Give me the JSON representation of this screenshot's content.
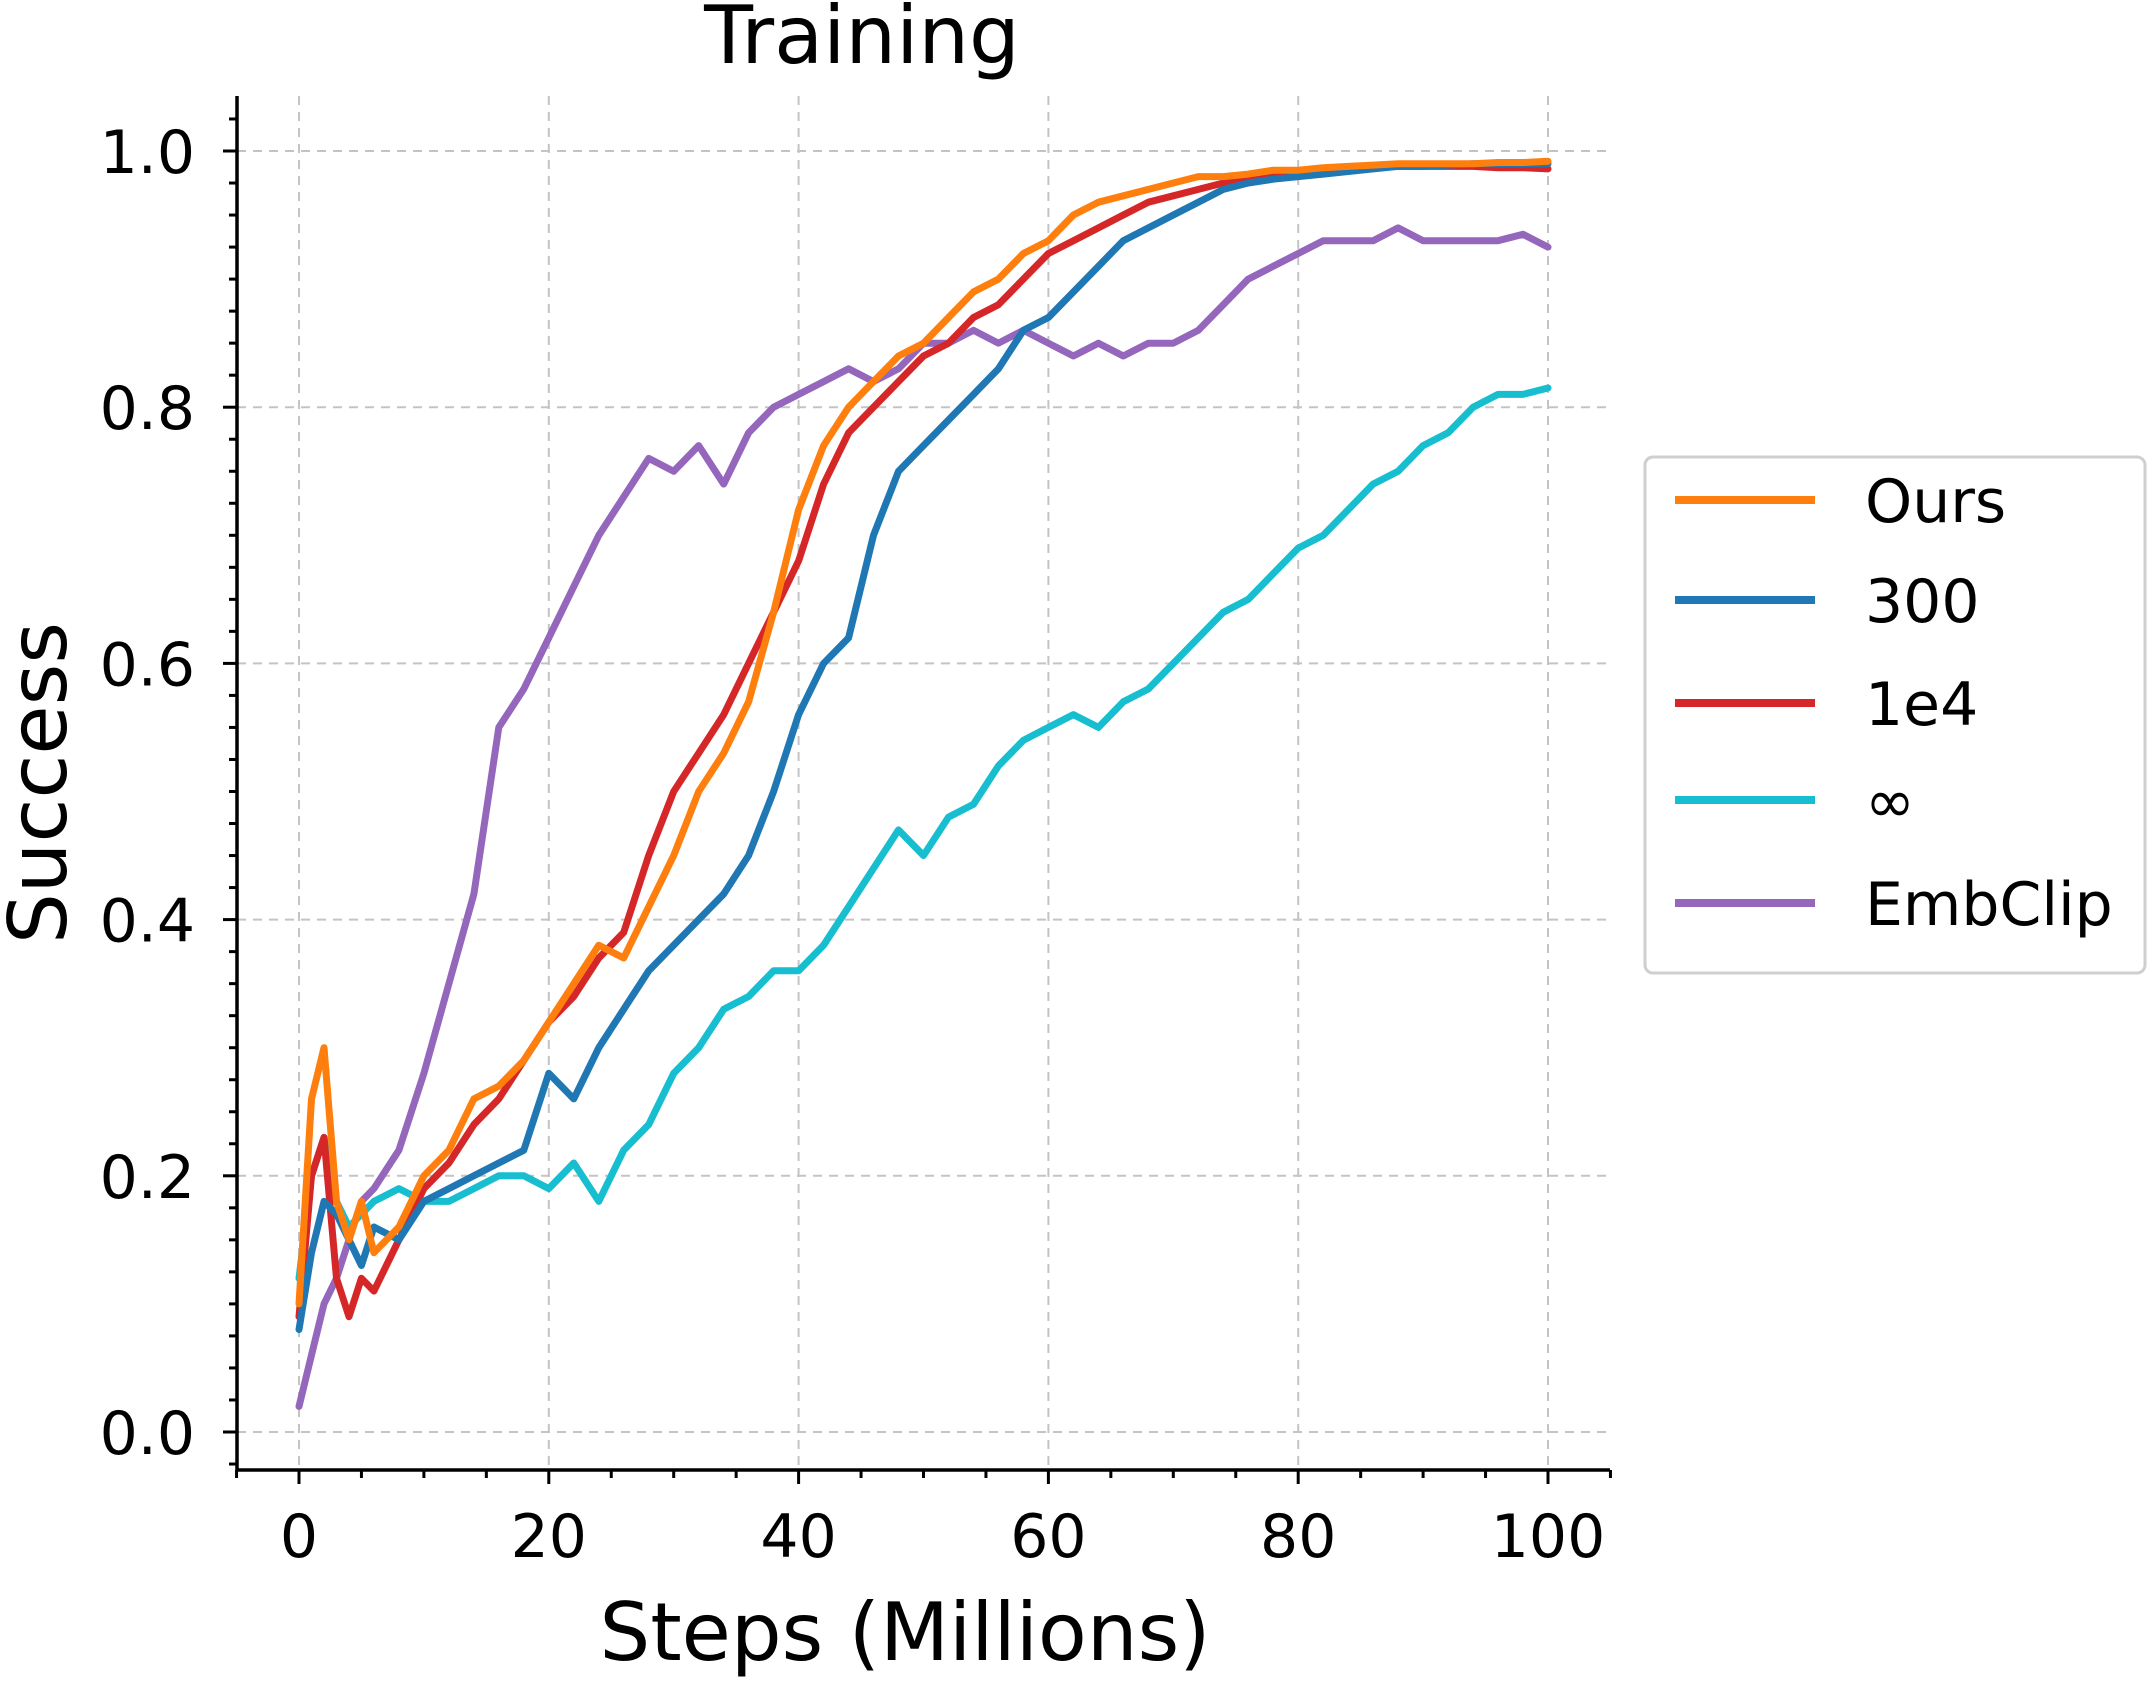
{
  "chart_data": {
    "type": "line",
    "title": "Training",
    "xlabel": "Steps (Millions)",
    "ylabel": "Success",
    "xlim": [
      -5,
      105
    ],
    "ylim": [
      -0.03,
      1.04
    ],
    "xticks": [
      0,
      20,
      40,
      60,
      80,
      100
    ],
    "xtick_labels": [
      "0",
      "20",
      "40",
      "60",
      "80",
      "100"
    ],
    "yticks": [
      0.0,
      0.2,
      0.4,
      0.6,
      0.8,
      1.0
    ],
    "ytick_labels": [
      "0.0",
      "0.2",
      "0.4",
      "0.6",
      "0.8",
      "1.0"
    ],
    "grid": true,
    "legend_position": "right",
    "series": [
      {
        "name": "Ours",
        "color": "#ff7f0e",
        "x": [
          0,
          1,
          2,
          3,
          4,
          5,
          6,
          8,
          10,
          12,
          14,
          16,
          18,
          20,
          22,
          24,
          26,
          28,
          30,
          32,
          34,
          36,
          38,
          40,
          42,
          44,
          46,
          48,
          50,
          52,
          54,
          56,
          58,
          60,
          62,
          64,
          66,
          68,
          70,
          72,
          74,
          76,
          78,
          80,
          82,
          84,
          86,
          88,
          90,
          92,
          94,
          96,
          98,
          100
        ],
        "y": [
          0.1,
          0.26,
          0.3,
          0.18,
          0.15,
          0.18,
          0.14,
          0.16,
          0.2,
          0.22,
          0.26,
          0.27,
          0.29,
          0.32,
          0.35,
          0.38,
          0.37,
          0.41,
          0.45,
          0.5,
          0.53,
          0.57,
          0.64,
          0.72,
          0.77,
          0.8,
          0.82,
          0.84,
          0.85,
          0.87,
          0.89,
          0.9,
          0.92,
          0.93,
          0.95,
          0.96,
          0.965,
          0.97,
          0.975,
          0.98,
          0.98,
          0.982,
          0.985,
          0.985,
          0.987,
          0.988,
          0.989,
          0.99,
          0.99,
          0.99,
          0.99,
          0.991,
          0.991,
          0.992
        ]
      },
      {
        "name": "300",
        "color": "#1f77b4",
        "x": [
          0,
          1,
          2,
          3,
          4,
          5,
          6,
          8,
          10,
          12,
          14,
          16,
          18,
          20,
          22,
          24,
          26,
          28,
          30,
          32,
          34,
          36,
          38,
          40,
          42,
          44,
          46,
          48,
          50,
          52,
          54,
          56,
          58,
          60,
          62,
          64,
          66,
          68,
          70,
          72,
          74,
          76,
          78,
          80,
          82,
          84,
          86,
          88,
          90,
          92,
          94,
          96,
          98,
          100
        ],
        "y": [
          0.08,
          0.14,
          0.18,
          0.17,
          0.15,
          0.13,
          0.16,
          0.15,
          0.18,
          0.19,
          0.2,
          0.21,
          0.22,
          0.28,
          0.26,
          0.3,
          0.33,
          0.36,
          0.38,
          0.4,
          0.42,
          0.45,
          0.5,
          0.56,
          0.6,
          0.62,
          0.7,
          0.75,
          0.77,
          0.79,
          0.81,
          0.83,
          0.86,
          0.87,
          0.89,
          0.91,
          0.93,
          0.94,
          0.95,
          0.96,
          0.97,
          0.975,
          0.978,
          0.98,
          0.982,
          0.984,
          0.986,
          0.988,
          0.988,
          0.989,
          0.99,
          0.99,
          0.99,
          0.99
        ]
      },
      {
        "name": "1e4",
        "color": "#d62728",
        "x": [
          0,
          1,
          2,
          3,
          4,
          5,
          6,
          8,
          10,
          12,
          14,
          16,
          18,
          20,
          22,
          24,
          26,
          28,
          30,
          32,
          34,
          36,
          38,
          40,
          42,
          44,
          46,
          48,
          50,
          52,
          54,
          56,
          58,
          60,
          62,
          64,
          66,
          68,
          70,
          72,
          74,
          76,
          78,
          80,
          82,
          84,
          86,
          88,
          90,
          92,
          94,
          96,
          98,
          100
        ],
        "y": [
          0.09,
          0.2,
          0.23,
          0.12,
          0.09,
          0.12,
          0.11,
          0.15,
          0.19,
          0.21,
          0.24,
          0.26,
          0.29,
          0.32,
          0.34,
          0.37,
          0.39,
          0.45,
          0.5,
          0.53,
          0.56,
          0.6,
          0.64,
          0.68,
          0.74,
          0.78,
          0.8,
          0.82,
          0.84,
          0.85,
          0.87,
          0.88,
          0.9,
          0.92,
          0.93,
          0.94,
          0.95,
          0.96,
          0.965,
          0.97,
          0.975,
          0.978,
          0.98,
          0.982,
          0.984,
          0.985,
          0.987,
          0.988,
          0.988,
          0.988,
          0.988,
          0.987,
          0.987,
          0.986
        ]
      },
      {
        "name": "∞",
        "color": "#17becf",
        "x": [
          0,
          1,
          2,
          3,
          4,
          5,
          6,
          8,
          10,
          12,
          14,
          16,
          18,
          20,
          22,
          24,
          26,
          28,
          30,
          32,
          34,
          36,
          38,
          40,
          42,
          44,
          46,
          48,
          50,
          52,
          54,
          56,
          58,
          60,
          62,
          64,
          66,
          68,
          70,
          72,
          74,
          76,
          78,
          80,
          82,
          84,
          86,
          88,
          90,
          92,
          94,
          96,
          98,
          100
        ],
        "y": [
          0.12,
          0.2,
          0.23,
          0.18,
          0.16,
          0.17,
          0.18,
          0.19,
          0.18,
          0.18,
          0.19,
          0.2,
          0.2,
          0.19,
          0.21,
          0.18,
          0.22,
          0.24,
          0.28,
          0.3,
          0.33,
          0.34,
          0.36,
          0.36,
          0.38,
          0.41,
          0.44,
          0.47,
          0.45,
          0.48,
          0.49,
          0.52,
          0.54,
          0.55,
          0.56,
          0.55,
          0.57,
          0.58,
          0.6,
          0.62,
          0.64,
          0.65,
          0.67,
          0.69,
          0.7,
          0.72,
          0.74,
          0.75,
          0.77,
          0.78,
          0.8,
          0.81,
          0.81,
          0.815
        ]
      },
      {
        "name": "EmbClip",
        "color": "#9467bd",
        "x": [
          0,
          1,
          2,
          3,
          4,
          5,
          6,
          8,
          10,
          12,
          14,
          16,
          18,
          20,
          22,
          24,
          26,
          28,
          30,
          32,
          34,
          36,
          38,
          40,
          42,
          44,
          46,
          48,
          50,
          52,
          54,
          56,
          58,
          60,
          62,
          64,
          66,
          68,
          70,
          72,
          74,
          76,
          78,
          80,
          82,
          84,
          86,
          88,
          90,
          92,
          94,
          96,
          98,
          100
        ],
        "y": [
          0.02,
          0.06,
          0.1,
          0.12,
          0.15,
          0.18,
          0.19,
          0.22,
          0.28,
          0.35,
          0.42,
          0.55,
          0.58,
          0.62,
          0.66,
          0.7,
          0.73,
          0.76,
          0.75,
          0.77,
          0.74,
          0.78,
          0.8,
          0.81,
          0.82,
          0.83,
          0.82,
          0.83,
          0.85,
          0.85,
          0.86,
          0.85,
          0.86,
          0.85,
          0.84,
          0.85,
          0.84,
          0.85,
          0.85,
          0.86,
          0.88,
          0.9,
          0.91,
          0.92,
          0.93,
          0.93,
          0.93,
          0.94,
          0.93,
          0.93,
          0.93,
          0.93,
          0.935,
          0.925
        ]
      }
    ]
  }
}
